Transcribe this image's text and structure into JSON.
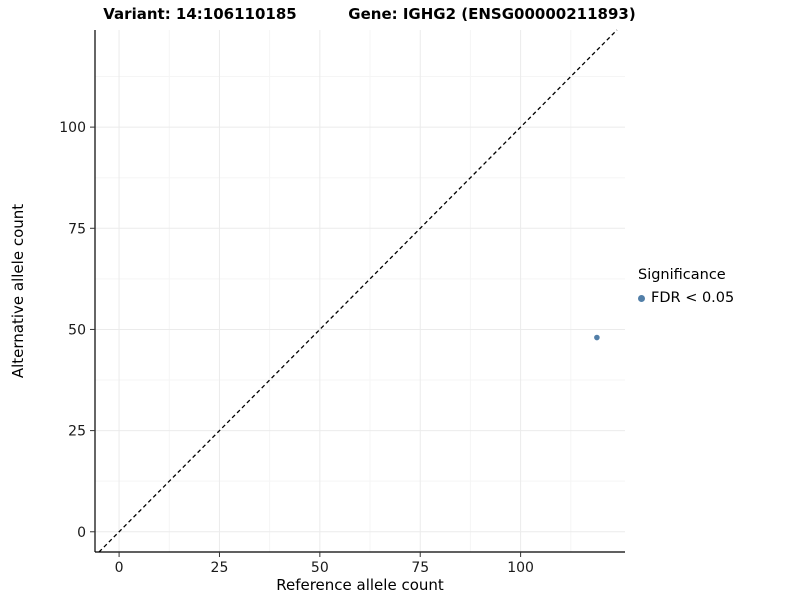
{
  "chart_data": {
    "type": "scatter",
    "titles": {
      "left": "Variant: 14:106110185",
      "right": "Gene: IGHG2 (ENSG00000211893)"
    },
    "xlabel": "Reference allele count",
    "ylabel": "Alternative allele count",
    "xlim": [
      -6,
      126
    ],
    "ylim": [
      -5,
      124
    ],
    "x_ticks": [
      0,
      25,
      50,
      75,
      100
    ],
    "y_ticks": [
      0,
      25,
      50,
      75,
      100
    ],
    "grid": true,
    "identity_line": {
      "style": "dashed",
      "color": "#000000",
      "from": -5,
      "to": 124
    },
    "series": [
      {
        "name": "FDR < 0.05",
        "color": "#527fa8",
        "points": [
          {
            "x": 119,
            "y": 48
          }
        ]
      }
    ],
    "legend": {
      "title": "Significance",
      "position": "right",
      "entries": [
        {
          "label": "FDR < 0.05",
          "color": "#527fa8"
        }
      ]
    }
  }
}
